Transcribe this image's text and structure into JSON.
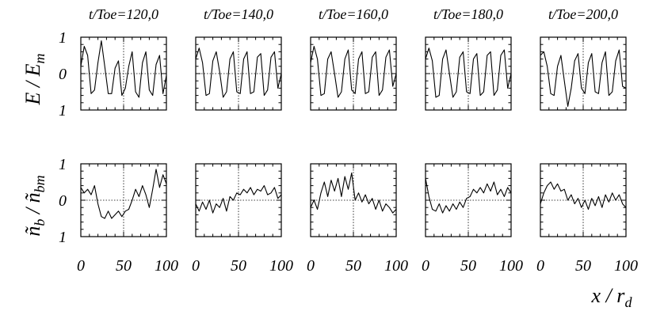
{
  "figure": {
    "time_labels": [
      "t/Toe=120,0",
      "t/Toe=140,0",
      "t/Toe=160,0",
      "t/Toe=180,0",
      "t/Toe=200,0"
    ],
    "row_labels": [
      "E / E_m",
      "ñ_b / ñ_bm"
    ],
    "x_label": "x / r_d",
    "x_tick_labels": [
      "0",
      "50",
      "100"
    ],
    "y_tick_labels": [
      "1",
      "0",
      "1"
    ]
  },
  "chart_data": [
    {
      "type": "line",
      "row": "E / E_m",
      "panel_title": "t/Toe=120,0",
      "xlim": [
        0,
        100
      ],
      "ylim": [
        -1,
        1
      ],
      "x": [
        0,
        4,
        8,
        12,
        16,
        20,
        24,
        28,
        32,
        36,
        40,
        44,
        48,
        52,
        56,
        60,
        64,
        68,
        72,
        76,
        80,
        84,
        88,
        92,
        96,
        100
      ],
      "series": [
        {
          "values": [
            0.2,
            0.75,
            0.5,
            -0.55,
            -0.45,
            0.3,
            0.9,
            0.2,
            -0.55,
            -0.55,
            0.15,
            0.35,
            -0.6,
            -0.4,
            0.2,
            0.6,
            -0.5,
            -0.65,
            0.3,
            0.6,
            -0.45,
            -0.6,
            0.25,
            0.5,
            -0.55,
            -0.05
          ]
        }
      ]
    },
    {
      "type": "line",
      "row": "E / E_m",
      "panel_title": "t/Toe=140,0",
      "xlim": [
        0,
        100
      ],
      "ylim": [
        -1,
        1
      ],
      "x": [
        0,
        4,
        8,
        12,
        16,
        20,
        24,
        28,
        32,
        36,
        40,
        44,
        48,
        52,
        56,
        60,
        64,
        68,
        72,
        76,
        80,
        84,
        88,
        92,
        96,
        100
      ],
      "series": [
        {
          "values": [
            0.4,
            0.7,
            0.3,
            -0.6,
            -0.55,
            0.35,
            0.6,
            0.05,
            -0.65,
            -0.5,
            0.4,
            0.6,
            -0.5,
            -0.55,
            0.4,
            0.6,
            -0.55,
            -0.5,
            0.45,
            0.55,
            -0.6,
            -0.45,
            0.45,
            0.6,
            -0.4,
            0.0
          ]
        }
      ]
    },
    {
      "type": "line",
      "row": "E / E_m",
      "panel_title": "t/Toe=160,0",
      "xlim": [
        0,
        100
      ],
      "ylim": [
        -1,
        1
      ],
      "x": [
        0,
        4,
        8,
        12,
        16,
        20,
        24,
        28,
        32,
        36,
        40,
        44,
        48,
        52,
        56,
        60,
        64,
        68,
        72,
        76,
        80,
        84,
        88,
        92,
        96,
        100
      ],
      "series": [
        {
          "values": [
            0.3,
            0.75,
            0.4,
            -0.6,
            -0.55,
            0.4,
            0.6,
            0.0,
            -0.65,
            -0.5,
            0.4,
            0.65,
            -0.45,
            -0.55,
            0.4,
            0.6,
            -0.55,
            -0.5,
            0.45,
            0.6,
            -0.6,
            -0.45,
            0.45,
            0.65,
            -0.35,
            0.0
          ]
        }
      ]
    },
    {
      "type": "line",
      "row": "E / E_m",
      "panel_title": "t/Toe=180,0",
      "xlim": [
        0,
        100
      ],
      "ylim": [
        -1,
        1
      ],
      "x": [
        0,
        4,
        8,
        12,
        16,
        20,
        24,
        28,
        32,
        36,
        40,
        44,
        48,
        52,
        56,
        60,
        64,
        68,
        72,
        76,
        80,
        84,
        88,
        92,
        96,
        100
      ],
      "series": [
        {
          "values": [
            0.4,
            0.7,
            0.35,
            -0.65,
            -0.6,
            0.4,
            0.65,
            0.0,
            -0.65,
            -0.5,
            0.45,
            0.6,
            -0.5,
            -0.55,
            0.4,
            0.55,
            -0.6,
            -0.5,
            0.5,
            0.6,
            -0.6,
            -0.45,
            0.5,
            0.65,
            -0.4,
            0.0
          ]
        }
      ]
    },
    {
      "type": "line",
      "row": "E / E_m",
      "panel_title": "t/Toe=200,0",
      "xlim": [
        0,
        100
      ],
      "ylim": [
        -1,
        1
      ],
      "x": [
        0,
        4,
        8,
        12,
        16,
        20,
        24,
        28,
        32,
        36,
        40,
        44,
        48,
        52,
        56,
        60,
        64,
        68,
        72,
        76,
        80,
        84,
        88,
        92,
        96,
        100
      ],
      "series": [
        {
          "values": [
            0.5,
            0.6,
            0.2,
            -0.55,
            -0.6,
            0.2,
            0.5,
            -0.2,
            -0.9,
            -0.4,
            0.35,
            0.55,
            -0.4,
            -0.55,
            0.3,
            0.55,
            -0.5,
            -0.55,
            0.3,
            0.6,
            -0.6,
            -0.5,
            0.35,
            0.65,
            -0.35,
            -0.4
          ]
        }
      ]
    },
    {
      "type": "line",
      "row": "ñ_b / ñ_bm",
      "panel_title": "t/Toe=120,0",
      "xlim": [
        0,
        100
      ],
      "ylim": [
        -1,
        1
      ],
      "x": [
        0,
        4,
        8,
        12,
        16,
        20,
        24,
        28,
        32,
        36,
        40,
        44,
        48,
        52,
        56,
        60,
        64,
        68,
        72,
        76,
        80,
        84,
        88,
        92,
        96,
        100
      ],
      "series": [
        {
          "values": [
            0.35,
            0.2,
            0.3,
            0.15,
            0.4,
            -0.1,
            -0.45,
            -0.5,
            -0.3,
            -0.5,
            -0.4,
            -0.3,
            -0.45,
            -0.3,
            -0.25,
            0.0,
            0.3,
            0.1,
            0.4,
            0.15,
            -0.2,
            0.3,
            0.85,
            0.35,
            0.7,
            0.45
          ]
        }
      ]
    },
    {
      "type": "line",
      "row": "ñ_b / ñ_bm",
      "panel_title": "t/Toe=140,0",
      "xlim": [
        0,
        100
      ],
      "ylim": [
        -1,
        1
      ],
      "x": [
        0,
        4,
        8,
        12,
        16,
        20,
        24,
        28,
        32,
        36,
        40,
        44,
        48,
        52,
        56,
        60,
        64,
        68,
        72,
        76,
        80,
        84,
        88,
        92,
        96,
        100
      ],
      "series": [
        {
          "values": [
            -0.1,
            -0.3,
            -0.05,
            -0.25,
            0.0,
            -0.35,
            -0.1,
            -0.2,
            0.05,
            -0.3,
            0.1,
            0.0,
            0.2,
            0.15,
            0.3,
            0.2,
            0.35,
            0.15,
            0.3,
            0.25,
            0.4,
            0.15,
            0.2,
            0.35,
            0.05,
            0.15
          ]
        }
      ]
    },
    {
      "type": "line",
      "row": "ñ_b / ñ_bm",
      "panel_title": "t/Toe=160,0",
      "xlim": [
        0,
        100
      ],
      "ylim": [
        -1,
        1
      ],
      "x": [
        0,
        4,
        8,
        12,
        16,
        20,
        24,
        28,
        32,
        36,
        40,
        44,
        48,
        52,
        56,
        60,
        64,
        68,
        72,
        76,
        80,
        84,
        88,
        92,
        96,
        100
      ],
      "series": [
        {
          "values": [
            -0.2,
            0.0,
            -0.25,
            0.2,
            0.5,
            0.1,
            0.55,
            0.25,
            0.6,
            0.1,
            0.65,
            0.3,
            0.75,
            0.0,
            0.2,
            -0.05,
            0.15,
            -0.1,
            0.05,
            -0.25,
            0.0,
            -0.3,
            -0.1,
            -0.2,
            -0.35,
            -0.25
          ]
        }
      ]
    },
    {
      "type": "line",
      "row": "ñ_b / ñ_bm",
      "panel_title": "t/Toe=180,0",
      "xlim": [
        0,
        100
      ],
      "ylim": [
        -1,
        1
      ],
      "x": [
        0,
        4,
        8,
        12,
        16,
        20,
        24,
        28,
        32,
        36,
        40,
        44,
        48,
        52,
        56,
        60,
        64,
        68,
        72,
        76,
        80,
        84,
        88,
        92,
        96,
        100
      ],
      "series": [
        {
          "values": [
            0.6,
            0.1,
            -0.25,
            -0.3,
            -0.1,
            -0.35,
            -0.15,
            -0.3,
            -0.1,
            -0.25,
            -0.05,
            -0.2,
            0.05,
            0.1,
            0.3,
            0.2,
            0.35,
            0.2,
            0.45,
            0.25,
            0.5,
            0.15,
            0.3,
            0.1,
            0.35,
            0.2
          ]
        }
      ]
    },
    {
      "type": "line",
      "row": "ñ_b / ñ_bm",
      "panel_title": "t/Toe=200,0",
      "xlim": [
        0,
        100
      ],
      "ylim": [
        -1,
        1
      ],
      "x": [
        0,
        4,
        8,
        12,
        16,
        20,
        24,
        28,
        32,
        36,
        40,
        44,
        48,
        52,
        56,
        60,
        64,
        68,
        72,
        76,
        80,
        84,
        88,
        92,
        96,
        100
      ],
      "series": [
        {
          "values": [
            -0.1,
            0.2,
            0.4,
            0.5,
            0.3,
            0.45,
            0.25,
            0.3,
            0.0,
            0.15,
            -0.1,
            0.05,
            -0.2,
            0.0,
            -0.25,
            0.05,
            -0.15,
            0.1,
            -0.2,
            0.15,
            -0.05,
            0.2,
            0.0,
            0.15,
            -0.1,
            -0.2
          ]
        }
      ]
    }
  ]
}
